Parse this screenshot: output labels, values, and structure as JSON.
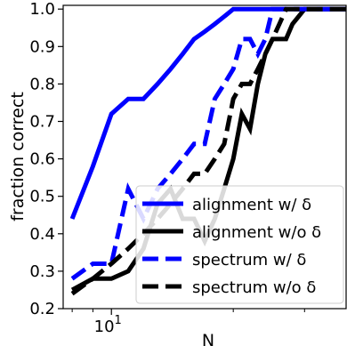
{
  "chart_data": {
    "type": "line",
    "xlabel": "N",
    "ylabel": "fraction correct",
    "xscale": "log",
    "xlim": [
      7.6,
      38
    ],
    "ylim": [
      0.2,
      1.01
    ],
    "x_tick_label": {
      "base": "10",
      "exp": "1"
    },
    "y_ticks": [
      "0.2",
      "0.3",
      "0.4",
      "0.5",
      "0.6",
      "0.7",
      "0.8",
      "0.9",
      "1.0"
    ],
    "legend_placement": "lower right",
    "grid": false,
    "series": [
      {
        "name": "alignment w/ δ",
        "color": "#0000ff",
        "style": "solid",
        "x": [
          8,
          9,
          10,
          11,
          12,
          13,
          14,
          15,
          16,
          17,
          18,
          19,
          20,
          22,
          24,
          26,
          28,
          30,
          32,
          34,
          36,
          38
        ],
        "values": [
          0.44,
          0.58,
          0.72,
          0.76,
          0.76,
          0.8,
          0.84,
          0.88,
          0.92,
          0.94,
          0.96,
          0.98,
          1.0,
          1.0,
          1.0,
          1.0,
          1.0,
          1.0,
          1.0,
          1.0,
          1.0,
          1.0
        ]
      },
      {
        "name": "alignment w/o δ",
        "color": "#000000",
        "style": "solid",
        "x": [
          8,
          9,
          10,
          11,
          12,
          13,
          14,
          15,
          16,
          17,
          18,
          19,
          20,
          21,
          22,
          23,
          24,
          25,
          26,
          27,
          28,
          29,
          30,
          32,
          34,
          36,
          38
        ],
        "values": [
          0.25,
          0.28,
          0.28,
          0.3,
          0.36,
          0.48,
          0.52,
          0.44,
          0.44,
          0.38,
          0.44,
          0.52,
          0.6,
          0.72,
          0.68,
          0.8,
          0.88,
          0.92,
          0.92,
          0.92,
          0.96,
          0.98,
          1.0,
          1.0,
          1.0,
          1.0,
          1.0
        ]
      },
      {
        "name": "spectrum w/ δ",
        "color": "#0000ff",
        "style": "dashed",
        "x": [
          8,
          9,
          10,
          11,
          12,
          13,
          14,
          15,
          16,
          17,
          18,
          19,
          20,
          21,
          22,
          23,
          24,
          25,
          26,
          28,
          30,
          32,
          34,
          36,
          38
        ],
        "values": [
          0.28,
          0.32,
          0.32,
          0.52,
          0.44,
          0.52,
          0.56,
          0.6,
          0.64,
          0.64,
          0.76,
          0.8,
          0.84,
          0.92,
          0.92,
          0.88,
          0.92,
          1.0,
          1.0,
          1.0,
          1.0,
          1.0,
          1.0,
          1.0,
          1.0
        ]
      },
      {
        "name": "spectrum w/o δ",
        "color": "#000000",
        "style": "dashed",
        "x": [
          8,
          9,
          10,
          11,
          12,
          13,
          14,
          15,
          16,
          17,
          18,
          19,
          20,
          21,
          22,
          23,
          24,
          25,
          26,
          27,
          28,
          30,
          32,
          34,
          36,
          38
        ],
        "values": [
          0.24,
          0.28,
          0.32,
          0.36,
          0.4,
          0.44,
          0.48,
          0.52,
          0.56,
          0.56,
          0.6,
          0.64,
          0.76,
          0.8,
          0.8,
          0.84,
          0.88,
          0.92,
          0.96,
          1.0,
          1.0,
          1.0,
          1.0,
          1.0,
          1.0,
          1.0
        ]
      }
    ]
  }
}
